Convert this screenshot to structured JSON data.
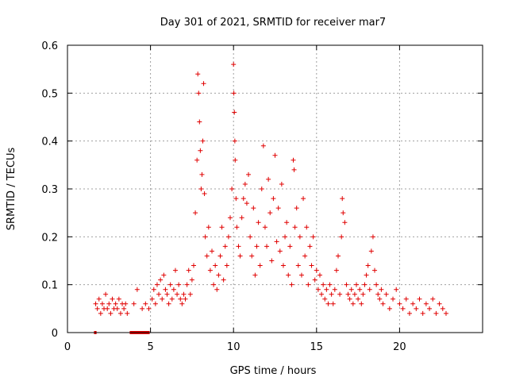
{
  "chart_data": {
    "type": "scatter",
    "title": "Day 301 of 2021, SRMTID for receiver mar7",
    "xlabel": "GPS time / hours",
    "ylabel": "SRMTID / TECUs",
    "xlim": [
      0,
      25
    ],
    "ylim": [
      0,
      0.6
    ],
    "x_ticks": [
      0,
      5,
      10,
      15,
      20
    ],
    "x_tick_labels": [
      "0",
      "5",
      "10",
      "15",
      "20"
    ],
    "y_ticks": [
      0,
      0.1,
      0.2,
      0.3,
      0.4,
      0.5,
      0.6
    ],
    "y_tick_labels": [
      "0",
      "0.1",
      "0.2",
      "0.3",
      "0.4",
      "0.5",
      "0.6"
    ],
    "grid": true,
    "marker": "plus",
    "color": "#e00000",
    "series": [
      {
        "name": "SRMTID",
        "points": [
          [
            1.7,
            0.06
          ],
          [
            1.8,
            0.05
          ],
          [
            1.9,
            0.07
          ],
          [
            2.0,
            0.04
          ],
          [
            2.1,
            0.06
          ],
          [
            2.2,
            0.05
          ],
          [
            2.3,
            0.08
          ],
          [
            2.4,
            0.05
          ],
          [
            2.5,
            0.06
          ],
          [
            2.6,
            0.04
          ],
          [
            2.7,
            0.07
          ],
          [
            2.8,
            0.05
          ],
          [
            2.9,
            0.06
          ],
          [
            3.0,
            0.05
          ],
          [
            3.1,
            0.07
          ],
          [
            3.2,
            0.04
          ],
          [
            3.3,
            0.06
          ],
          [
            3.4,
            0.05
          ],
          [
            3.5,
            0.06
          ],
          [
            3.6,
            0.04
          ],
          [
            4.0,
            0.06
          ],
          [
            4.2,
            0.09
          ],
          [
            4.5,
            0.05
          ],
          [
            4.7,
            0.06
          ],
          [
            4.9,
            0.05
          ],
          [
            5.1,
            0.07
          ],
          [
            5.2,
            0.09
          ],
          [
            5.3,
            0.06
          ],
          [
            5.4,
            0.1
          ],
          [
            5.5,
            0.08
          ],
          [
            5.6,
            0.11
          ],
          [
            5.7,
            0.07
          ],
          [
            5.8,
            0.12
          ],
          [
            5.9,
            0.09
          ],
          [
            6.0,
            0.08
          ],
          [
            6.1,
            0.06
          ],
          [
            6.2,
            0.1
          ],
          [
            6.3,
            0.07
          ],
          [
            6.4,
            0.09
          ],
          [
            6.5,
            0.13
          ],
          [
            6.6,
            0.08
          ],
          [
            6.7,
            0.1
          ],
          [
            6.8,
            0.07
          ],
          [
            6.9,
            0.06
          ],
          [
            7.0,
            0.08
          ],
          [
            7.1,
            0.07
          ],
          [
            7.2,
            0.1
          ],
          [
            7.3,
            0.13
          ],
          [
            7.4,
            0.08
          ],
          [
            7.5,
            0.11
          ],
          [
            7.6,
            0.14
          ],
          [
            7.7,
            0.25
          ],
          [
            7.8,
            0.36
          ],
          [
            7.85,
            0.54
          ],
          [
            7.9,
            0.5
          ],
          [
            7.95,
            0.44
          ],
          [
            8.0,
            0.38
          ],
          [
            8.05,
            0.3
          ],
          [
            8.1,
            0.33
          ],
          [
            8.15,
            0.4
          ],
          [
            8.2,
            0.52
          ],
          [
            8.25,
            0.29
          ],
          [
            8.3,
            0.2
          ],
          [
            8.4,
            0.16
          ],
          [
            8.5,
            0.22
          ],
          [
            8.6,
            0.13
          ],
          [
            8.7,
            0.17
          ],
          [
            8.8,
            0.1
          ],
          [
            8.9,
            0.14
          ],
          [
            9.0,
            0.09
          ],
          [
            9.1,
            0.12
          ],
          [
            9.2,
            0.16
          ],
          [
            9.3,
            0.22
          ],
          [
            9.4,
            0.11
          ],
          [
            9.5,
            0.18
          ],
          [
            9.6,
            0.14
          ],
          [
            9.7,
            0.2
          ],
          [
            9.8,
            0.24
          ],
          [
            9.9,
            0.3
          ],
          [
            10.0,
            0.56
          ],
          [
            10.02,
            0.5
          ],
          [
            10.05,
            0.46
          ],
          [
            10.08,
            0.4
          ],
          [
            10.1,
            0.36
          ],
          [
            10.15,
            0.28
          ],
          [
            10.2,
            0.22
          ],
          [
            10.3,
            0.18
          ],
          [
            10.4,
            0.16
          ],
          [
            10.5,
            0.24
          ],
          [
            10.6,
            0.28
          ],
          [
            10.7,
            0.31
          ],
          [
            10.8,
            0.27
          ],
          [
            10.9,
            0.33
          ],
          [
            11.0,
            0.2
          ],
          [
            11.1,
            0.16
          ],
          [
            11.2,
            0.26
          ],
          [
            11.3,
            0.12
          ],
          [
            11.4,
            0.18
          ],
          [
            11.5,
            0.23
          ],
          [
            11.6,
            0.14
          ],
          [
            11.7,
            0.3
          ],
          [
            11.8,
            0.39
          ],
          [
            11.9,
            0.22
          ],
          [
            12.0,
            0.18
          ],
          [
            12.1,
            0.32
          ],
          [
            12.2,
            0.25
          ],
          [
            12.3,
            0.15
          ],
          [
            12.4,
            0.28
          ],
          [
            12.5,
            0.37
          ],
          [
            12.6,
            0.19
          ],
          [
            12.7,
            0.26
          ],
          [
            12.8,
            0.17
          ],
          [
            12.9,
            0.31
          ],
          [
            13.0,
            0.14
          ],
          [
            13.1,
            0.2
          ],
          [
            13.2,
            0.23
          ],
          [
            13.3,
            0.12
          ],
          [
            13.4,
            0.18
          ],
          [
            13.5,
            0.1
          ],
          [
            13.6,
            0.36
          ],
          [
            13.65,
            0.34
          ],
          [
            13.7,
            0.22
          ],
          [
            13.8,
            0.26
          ],
          [
            13.9,
            0.14
          ],
          [
            14.0,
            0.2
          ],
          [
            14.1,
            0.12
          ],
          [
            14.2,
            0.28
          ],
          [
            14.3,
            0.16
          ],
          [
            14.4,
            0.22
          ],
          [
            14.5,
            0.1
          ],
          [
            14.6,
            0.18
          ],
          [
            14.7,
            0.14
          ],
          [
            14.8,
            0.2
          ],
          [
            14.9,
            0.11
          ],
          [
            15.0,
            0.13
          ],
          [
            15.1,
            0.09
          ],
          [
            15.2,
            0.12
          ],
          [
            15.3,
            0.08
          ],
          [
            15.4,
            0.1
          ],
          [
            15.5,
            0.07
          ],
          [
            15.6,
            0.09
          ],
          [
            15.7,
            0.06
          ],
          [
            15.8,
            0.1
          ],
          [
            15.9,
            0.08
          ],
          [
            16.0,
            0.06
          ],
          [
            16.1,
            0.09
          ],
          [
            16.2,
            0.13
          ],
          [
            16.3,
            0.16
          ],
          [
            16.4,
            0.08
          ],
          [
            16.5,
            0.2
          ],
          [
            16.55,
            0.28
          ],
          [
            16.6,
            0.25
          ],
          [
            16.7,
            0.23
          ],
          [
            16.8,
            0.1
          ],
          [
            16.9,
            0.08
          ],
          [
            17.0,
            0.07
          ],
          [
            17.1,
            0.09
          ],
          [
            17.2,
            0.06
          ],
          [
            17.3,
            0.08
          ],
          [
            17.4,
            0.1
          ],
          [
            17.5,
            0.07
          ],
          [
            17.6,
            0.09
          ],
          [
            17.7,
            0.06
          ],
          [
            17.8,
            0.08
          ],
          [
            17.9,
            0.1
          ],
          [
            18.0,
            0.12
          ],
          [
            18.1,
            0.14
          ],
          [
            18.2,
            0.09
          ],
          [
            18.3,
            0.17
          ],
          [
            18.4,
            0.2
          ],
          [
            18.5,
            0.13
          ],
          [
            18.6,
            0.1
          ],
          [
            18.7,
            0.08
          ],
          [
            18.8,
            0.07
          ],
          [
            18.9,
            0.09
          ],
          [
            19.0,
            0.06
          ],
          [
            19.2,
            0.08
          ],
          [
            19.4,
            0.05
          ],
          [
            19.6,
            0.07
          ],
          [
            19.8,
            0.09
          ],
          [
            20.0,
            0.06
          ],
          [
            20.2,
            0.05
          ],
          [
            20.4,
            0.07
          ],
          [
            20.6,
            0.04
          ],
          [
            20.8,
            0.06
          ],
          [
            21.0,
            0.05
          ],
          [
            21.2,
            0.07
          ],
          [
            21.4,
            0.04
          ],
          [
            21.6,
            0.06
          ],
          [
            21.8,
            0.05
          ],
          [
            22.0,
            0.07
          ],
          [
            22.2,
            0.04
          ],
          [
            22.4,
            0.06
          ],
          [
            22.6,
            0.05
          ],
          [
            22.8,
            0.04
          ]
        ]
      }
    ],
    "zero_segments": [
      [
        1.6,
        1.75
      ],
      [
        3.75,
        4.95
      ]
    ]
  }
}
